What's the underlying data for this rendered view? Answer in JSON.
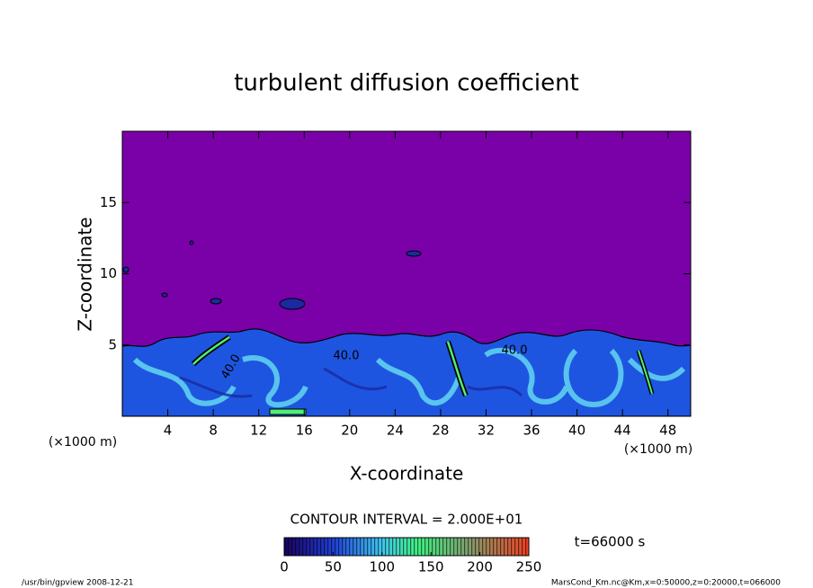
{
  "chart_data": {
    "type": "contour",
    "title": "turbulent diffusion coefficient",
    "xlabel": "X-coordinate",
    "ylabel": "Z-coordinate",
    "xunit": "(×1000 m)",
    "yunit": "(×1000 m)",
    "xlim": [
      0,
      50
    ],
    "ylim": [
      0,
      20
    ],
    "xticks": [
      4,
      8,
      12,
      16,
      20,
      24,
      28,
      32,
      36,
      40,
      44,
      48
    ],
    "yticks": [
      5,
      10,
      15
    ],
    "contour_labels": [
      {
        "value": 40,
        "label": "40.0"
      },
      {
        "value": 40,
        "label": "40.0"
      },
      {
        "value": 40,
        "label": "40.0"
      }
    ],
    "contour_interval_text": "CONTOUR INTERVAL = 2.000E+01",
    "colorbar": {
      "lim": [
        0,
        250
      ],
      "ticks": [
        0,
        50,
        100,
        150,
        200,
        250
      ]
    },
    "time_text": "t=66000 s",
    "footer_left": "/usr/bin/gpview  2008-12-21",
    "footer_right": "MarsCond_Km.nc@Km,x=0:50000,z=0:20000,t=066000"
  }
}
